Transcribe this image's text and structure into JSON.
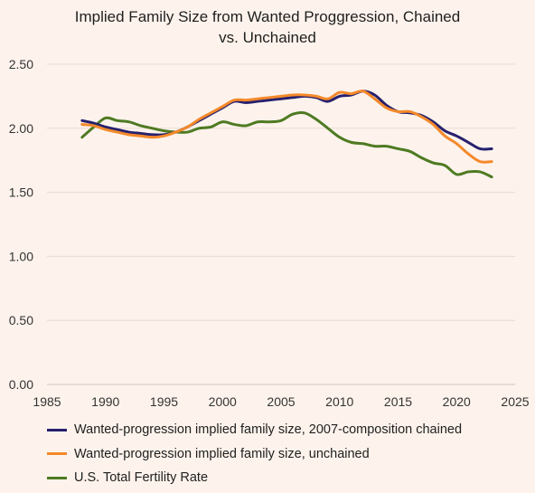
{
  "chart_data": {
    "type": "line",
    "title": "Implied Family Size from Wanted Proggression, Chained vs. Unchained",
    "title_lines": [
      "Implied Family Size from Wanted Proggression, Chained",
      "vs. Unchained"
    ],
    "xlim": [
      1985,
      2025
    ],
    "ylim": [
      0,
      2.5
    ],
    "x_ticks": [
      1985,
      1990,
      1995,
      2000,
      2005,
      2010,
      2015,
      2020,
      2025
    ],
    "y_ticks": [
      0,
      0.5,
      1.0,
      1.5,
      2.0,
      2.5
    ],
    "y_tick_labels": [
      "0.00",
      "0.50",
      "1.00",
      "1.50",
      "2.00",
      "2.50"
    ],
    "grid": "horizontal",
    "legend_position": "bottom",
    "series": [
      {
        "name": "Wanted-progression implied family size, 2007-composition chained",
        "color": "#26206e",
        "x": [
          1988,
          1989,
          1990,
          1991,
          1992,
          1993,
          1994,
          1995,
          1996,
          1997,
          1998,
          1999,
          2000,
          2001,
          2002,
          2003,
          2004,
          2005,
          2006,
          2007,
          2008,
          2009,
          2010,
          2011,
          2012,
          2013,
          2014,
          2015,
          2016,
          2017,
          2018,
          2019,
          2020,
          2021,
          2022,
          2023
        ],
        "values": [
          2.06,
          2.04,
          2.01,
          1.99,
          1.97,
          1.96,
          1.95,
          1.95,
          1.97,
          2.01,
          2.06,
          2.11,
          2.16,
          2.21,
          2.2,
          2.21,
          2.22,
          2.23,
          2.24,
          2.25,
          2.24,
          2.21,
          2.25,
          2.26,
          2.29,
          2.26,
          2.18,
          2.13,
          2.12,
          2.1,
          2.05,
          1.98,
          1.94,
          1.89,
          1.84,
          1.84
        ]
      },
      {
        "name": "Wanted-progression implied family size, unchained",
        "color": "#f4892b",
        "x": [
          1988,
          1989,
          1990,
          1991,
          1992,
          1993,
          1994,
          1995,
          1996,
          1997,
          1998,
          1999,
          2000,
          2001,
          2002,
          2003,
          2004,
          2005,
          2006,
          2007,
          2008,
          2009,
          2010,
          2011,
          2012,
          2013,
          2014,
          2015,
          2016,
          2017,
          2018,
          2019,
          2020,
          2021,
          2022,
          2023
        ],
        "values": [
          2.03,
          2.02,
          1.99,
          1.97,
          1.95,
          1.94,
          1.93,
          1.94,
          1.97,
          2.01,
          2.07,
          2.12,
          2.17,
          2.22,
          2.22,
          2.23,
          2.24,
          2.25,
          2.26,
          2.26,
          2.25,
          2.23,
          2.28,
          2.27,
          2.29,
          2.23,
          2.16,
          2.13,
          2.13,
          2.09,
          2.03,
          1.94,
          1.88,
          1.8,
          1.74,
          1.74
        ]
      },
      {
        "name": "U.S. Total Fertility Rate",
        "color": "#4e7a22",
        "x": [
          1988,
          1989,
          1990,
          1991,
          1992,
          1993,
          1994,
          1995,
          1996,
          1997,
          1998,
          1999,
          2000,
          2001,
          2002,
          2003,
          2004,
          2005,
          2006,
          2007,
          2008,
          2009,
          2010,
          2011,
          2012,
          2013,
          2014,
          2015,
          2016,
          2017,
          2018,
          2019,
          2020,
          2021,
          2022,
          2023
        ],
        "values": [
          1.93,
          2.01,
          2.08,
          2.06,
          2.05,
          2.02,
          2.0,
          1.98,
          1.97,
          1.97,
          2.0,
          2.01,
          2.05,
          2.03,
          2.02,
          2.05,
          2.05,
          2.06,
          2.11,
          2.12,
          2.07,
          2.0,
          1.93,
          1.89,
          1.88,
          1.86,
          1.86,
          1.84,
          1.82,
          1.77,
          1.73,
          1.71,
          1.64,
          1.66,
          1.66,
          1.62
        ]
      }
    ]
  }
}
